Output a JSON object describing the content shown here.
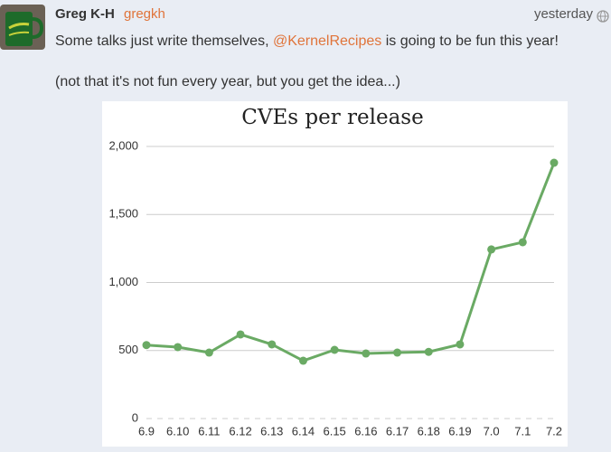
{
  "post": {
    "author": "Greg K-H",
    "handle": "gregkh",
    "time": "yesterday",
    "text_before": "Some talks just write themselves, ",
    "mention": "@KernelRecipes",
    "text_after": " is going to be fun this year!",
    "text_second": "(not that it's not fun every year, but you get the idea...)"
  },
  "chart_data": {
    "type": "line",
    "title": "CVEs per release",
    "categories": [
      "6.9",
      "6.10",
      "6.11",
      "6.12",
      "6.13",
      "6.14",
      "6.15",
      "6.16",
      "6.17",
      "6.18",
      "6.19",
      "7.0",
      "7.1",
      "7.2"
    ],
    "values": [
      540,
      525,
      485,
      618,
      545,
      425,
      505,
      478,
      485,
      490,
      545,
      1243,
      1296,
      1880
    ],
    "color": "#6aaa64",
    "ylim": [
      0,
      2000
    ],
    "yticks": [
      0,
      500,
      {
        "value": 1000,
        "label": "1,000"
      },
      {
        "value": 1500,
        "label": "1,500"
      },
      {
        "value": 2000,
        "label": "2,000"
      }
    ],
    "grid": true
  }
}
